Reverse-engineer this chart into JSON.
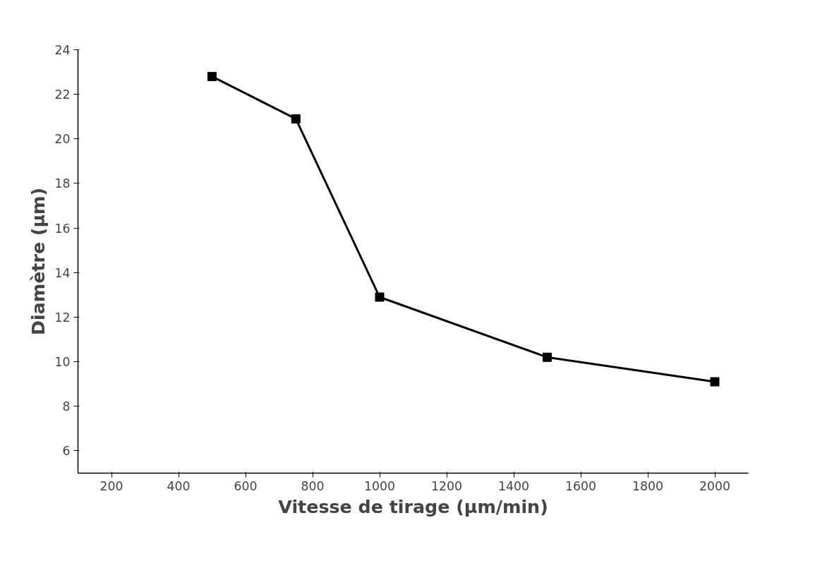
{
  "chart_data": {
    "type": "line",
    "xlabel": "Vitesse de tirage (µm/min)",
    "ylabel": "Diamètre (µm)",
    "x": [
      500,
      750,
      1000,
      1500,
      2000
    ],
    "series": [
      {
        "color": "#000000",
        "values": [
          22.8,
          20.9,
          12.9,
          10.2,
          9.1
        ]
      }
    ],
    "xlim": [
      100,
      2100
    ],
    "ylim": [
      5,
      24
    ],
    "xticks": [
      200,
      400,
      600,
      800,
      1000,
      1200,
      1400,
      1600,
      1800,
      2000
    ],
    "yticks": [
      6,
      8,
      10,
      12,
      14,
      16,
      18,
      20,
      22,
      24
    ],
    "marker": "square",
    "line_style": "solid",
    "grid": false
  }
}
